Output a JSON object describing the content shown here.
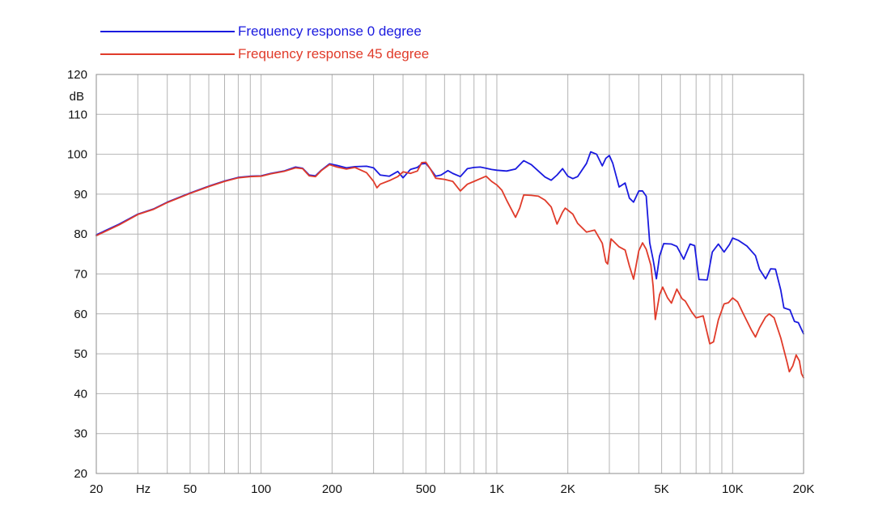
{
  "chart_data": {
    "type": "line",
    "x_scale": "log",
    "xlim": [
      20,
      20000
    ],
    "ylim": [
      20,
      120
    ],
    "ylabel": "dB",
    "x_unit_label": "Hz",
    "grid": true,
    "legend_position": "top-left",
    "x_tick_labels": [
      {
        "value": 20,
        "label": "20"
      },
      {
        "value": 50,
        "label": "50"
      },
      {
        "value": 100,
        "label": "100"
      },
      {
        "value": 200,
        "label": "200"
      },
      {
        "value": 500,
        "label": "500"
      },
      {
        "value": 1000,
        "label": "1K"
      },
      {
        "value": 2000,
        "label": "2K"
      },
      {
        "value": 5000,
        "label": "5K"
      },
      {
        "value": 10000,
        "label": "10K"
      },
      {
        "value": 20000,
        "label": "20K"
      }
    ],
    "x_gridlines": [
      20,
      30,
      40,
      50,
      60,
      70,
      80,
      90,
      100,
      200,
      300,
      400,
      500,
      600,
      700,
      800,
      900,
      1000,
      2000,
      3000,
      4000,
      5000,
      6000,
      7000,
      8000,
      9000,
      10000,
      20000
    ],
    "y_ticks": [
      20,
      30,
      40,
      50,
      60,
      70,
      80,
      90,
      100,
      110,
      120
    ],
    "series": [
      {
        "name": "Frequency response 0 degree",
        "color": "#1a1adf",
        "points": [
          [
            20,
            79.8
          ],
          [
            25,
            82.5
          ],
          [
            30,
            85
          ],
          [
            35,
            86.3
          ],
          [
            40,
            88
          ],
          [
            50,
            90.3
          ],
          [
            60,
            92
          ],
          [
            70,
            93.3
          ],
          [
            80,
            94.2
          ],
          [
            90,
            94.5
          ],
          [
            100,
            94.6
          ],
          [
            110,
            95.2
          ],
          [
            125,
            95.8
          ],
          [
            140,
            96.8
          ],
          [
            150,
            96.5
          ],
          [
            160,
            94.8
          ],
          [
            170,
            94.6
          ],
          [
            180,
            96
          ],
          [
            195,
            97.6
          ],
          [
            210,
            97.2
          ],
          [
            230,
            96.6
          ],
          [
            250,
            96.9
          ],
          [
            280,
            97
          ],
          [
            300,
            96.6
          ],
          [
            320,
            94.8
          ],
          [
            350,
            94.5
          ],
          [
            380,
            95.7
          ],
          [
            400,
            94.1
          ],
          [
            430,
            96.2
          ],
          [
            460,
            96.7
          ],
          [
            480,
            97.6
          ],
          [
            500,
            97.7
          ],
          [
            520,
            96.5
          ],
          [
            550,
            94.5
          ],
          [
            580,
            94.8
          ],
          [
            620,
            95.9
          ],
          [
            650,
            95.2
          ],
          [
            700,
            94.4
          ],
          [
            750,
            96.4
          ],
          [
            800,
            96.7
          ],
          [
            850,
            96.8
          ],
          [
            900,
            96.5
          ],
          [
            950,
            96.2
          ],
          [
            1000,
            96
          ],
          [
            1100,
            95.8
          ],
          [
            1200,
            96.3
          ],
          [
            1300,
            98.4
          ],
          [
            1400,
            97.4
          ],
          [
            1500,
            95.8
          ],
          [
            1600,
            94.3
          ],
          [
            1700,
            93.5
          ],
          [
            1800,
            94.8
          ],
          [
            1900,
            96.4
          ],
          [
            2000,
            94.5
          ],
          [
            2100,
            93.9
          ],
          [
            2200,
            94.4
          ],
          [
            2400,
            97.7
          ],
          [
            2500,
            100.6
          ],
          [
            2650,
            100
          ],
          [
            2800,
            97.1
          ],
          [
            2900,
            99
          ],
          [
            3000,
            99.7
          ],
          [
            3100,
            97.8
          ],
          [
            3300,
            91.8
          ],
          [
            3500,
            92.8
          ],
          [
            3650,
            89
          ],
          [
            3800,
            88
          ],
          [
            4000,
            90.8
          ],
          [
            4150,
            90.8
          ],
          [
            4300,
            89.5
          ],
          [
            4450,
            77.8
          ],
          [
            4600,
            73.6
          ],
          [
            4750,
            68.8
          ],
          [
            4900,
            74.5
          ],
          [
            5100,
            77.6
          ],
          [
            5500,
            77.5
          ],
          [
            5800,
            76.9
          ],
          [
            6200,
            73.7
          ],
          [
            6600,
            77.5
          ],
          [
            6900,
            77.1
          ],
          [
            7200,
            68.6
          ],
          [
            7800,
            68.5
          ],
          [
            8200,
            75.5
          ],
          [
            8700,
            77.5
          ],
          [
            9200,
            75.5
          ],
          [
            9700,
            77.4
          ],
          [
            10000,
            79
          ],
          [
            10600,
            78.4
          ],
          [
            11500,
            77
          ],
          [
            12500,
            74.6
          ],
          [
            13000,
            71.2
          ],
          [
            13800,
            68.8
          ],
          [
            14500,
            71.3
          ],
          [
            15200,
            71.2
          ],
          [
            16000,
            66
          ],
          [
            16500,
            61.5
          ],
          [
            17500,
            61
          ],
          [
            18300,
            58.1
          ],
          [
            19000,
            57.8
          ],
          [
            20000,
            55
          ]
        ]
      },
      {
        "name": "Frequency response 45 degree",
        "color": "#e03b2a",
        "points": [
          [
            20,
            79.6
          ],
          [
            25,
            82.3
          ],
          [
            30,
            84.9
          ],
          [
            35,
            86.2
          ],
          [
            40,
            87.9
          ],
          [
            50,
            90.2
          ],
          [
            60,
            91.9
          ],
          [
            70,
            93.2
          ],
          [
            80,
            94.1
          ],
          [
            90,
            94.4
          ],
          [
            100,
            94.5
          ],
          [
            110,
            95.1
          ],
          [
            125,
            95.7
          ],
          [
            140,
            96.6
          ],
          [
            150,
            96.4
          ],
          [
            160,
            94.6
          ],
          [
            170,
            94.4
          ],
          [
            180,
            95.9
          ],
          [
            195,
            97.4
          ],
          [
            210,
            96.8
          ],
          [
            230,
            96.3
          ],
          [
            250,
            96.7
          ],
          [
            280,
            95.4
          ],
          [
            300,
            93.2
          ],
          [
            310,
            91.6
          ],
          [
            320,
            92.5
          ],
          [
            350,
            93.4
          ],
          [
            380,
            94.4
          ],
          [
            400,
            95.6
          ],
          [
            430,
            95.2
          ],
          [
            460,
            95.8
          ],
          [
            480,
            97.9
          ],
          [
            500,
            98
          ],
          [
            520,
            96.5
          ],
          [
            550,
            94
          ],
          [
            600,
            93.7
          ],
          [
            650,
            93.2
          ],
          [
            700,
            90.8
          ],
          [
            750,
            92.5
          ],
          [
            800,
            93.2
          ],
          [
            900,
            94.5
          ],
          [
            950,
            93.2
          ],
          [
            1000,
            92.3
          ],
          [
            1050,
            91
          ],
          [
            1100,
            88.5
          ],
          [
            1200,
            84.2
          ],
          [
            1250,
            86.5
          ],
          [
            1300,
            89.8
          ],
          [
            1400,
            89.7
          ],
          [
            1500,
            89.5
          ],
          [
            1600,
            88.5
          ],
          [
            1700,
            86.8
          ],
          [
            1800,
            82.5
          ],
          [
            1900,
            85.5
          ],
          [
            1950,
            86.5
          ],
          [
            2000,
            86
          ],
          [
            2100,
            85
          ],
          [
            2200,
            82.7
          ],
          [
            2400,
            80.5
          ],
          [
            2600,
            81
          ],
          [
            2800,
            77.7
          ],
          [
            2900,
            73
          ],
          [
            2950,
            72.5
          ],
          [
            3050,
            78.8
          ],
          [
            3300,
            76.8
          ],
          [
            3500,
            76
          ],
          [
            3650,
            72
          ],
          [
            3800,
            68.7
          ],
          [
            4000,
            75.8
          ],
          [
            4150,
            77.8
          ],
          [
            4300,
            76.2
          ],
          [
            4500,
            72.2
          ],
          [
            4600,
            67
          ],
          [
            4700,
            58.6
          ],
          [
            4900,
            64.8
          ],
          [
            5050,
            66.7
          ],
          [
            5300,
            64
          ],
          [
            5500,
            62.7
          ],
          [
            5800,
            66.2
          ],
          [
            6100,
            63.8
          ],
          [
            6300,
            63.2
          ],
          [
            6700,
            60.5
          ],
          [
            7000,
            59
          ],
          [
            7500,
            59.5
          ],
          [
            8000,
            52.5
          ],
          [
            8300,
            53
          ],
          [
            8700,
            58.5
          ],
          [
            9200,
            62.5
          ],
          [
            9600,
            62.8
          ],
          [
            10000,
            64
          ],
          [
            10500,
            63
          ],
          [
            11000,
            60.5
          ],
          [
            12000,
            56
          ],
          [
            12500,
            54.2
          ],
          [
            13000,
            56.5
          ],
          [
            13800,
            59.2
          ],
          [
            14300,
            60
          ],
          [
            15000,
            59
          ],
          [
            16000,
            54
          ],
          [
            17000,
            48
          ],
          [
            17400,
            45.5
          ],
          [
            18000,
            47
          ],
          [
            18600,
            49.7
          ],
          [
            19200,
            48.2
          ],
          [
            19600,
            45
          ],
          [
            20000,
            44
          ]
        ]
      }
    ]
  }
}
